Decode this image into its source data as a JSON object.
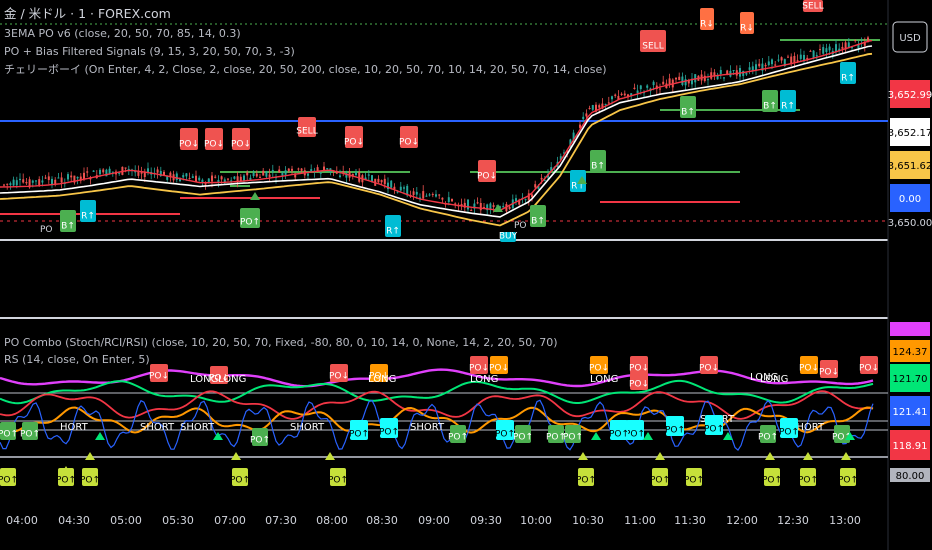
{
  "header": {
    "symbol": "金 / 米ドル · 1 · FOREX.com",
    "indicators": [
      "3EMA PO v6 (close, 20, 50, 70, 85, 14, 0.3)",
      "PO + Bias Filtered Signals (9, 15, 3, 20, 50, 70, 3, -3)",
      "チェリーボーイ (On Enter, 4, 2, Close, 2, close, 20, 50, 200, close, 10, 20, 50, 70, 10, 14, 20, 50, 70, 14, close)"
    ]
  },
  "lower_pane": {
    "indicators": [
      "PO Combo (Stoch/RCI/RSI) (close, 10, 20, 50, 70, Fixed, -80, 80, 0, 10, 14, 0, None, 14, 2, 20, 50, 70)",
      "RS (14, close, On Enter, 5)"
    ]
  },
  "price_axis": {
    "currency": "USD",
    "tags_top": [
      {
        "text": "3,652.99",
        "bg": "#f23645",
        "fg": "#ffffff"
      },
      {
        "text": "3,652.17",
        "bg": "#ffffff",
        "fg": "#000000"
      },
      {
        "text": "3,651.62",
        "bg": "#f7c548",
        "fg": "#000000"
      },
      {
        "text": "0.00",
        "bg": "#2962ff",
        "fg": "#ffffff"
      },
      {
        "text": "3,650.00",
        "bg": "#000000",
        "fg": "#d1d4dc"
      }
    ],
    "tags_bottom": [
      {
        "text": "",
        "bg": "#e040fb",
        "fg": "#ffffff"
      },
      {
        "text": "124.37",
        "bg": "#ff9800",
        "fg": "#000000"
      },
      {
        "text": "121.70",
        "bg": "#00e676",
        "fg": "#000000"
      },
      {
        "text": "121.41",
        "bg": "#2962ff",
        "fg": "#ffffff"
      },
      {
        "text": "118.91",
        "bg": "#f23645",
        "fg": "#ffffff"
      },
      {
        "text": "80.00",
        "bg": "#b2b5be",
        "fg": "#000000"
      }
    ]
  },
  "time_axis": [
    "04:00",
    "04:30",
    "05:00",
    "05:30",
    "07:00",
    "07:30",
    "08:00",
    "08:30",
    "09:00",
    "09:30",
    "10:00",
    "10:30",
    "11:00",
    "11:30",
    "12:00",
    "12:30",
    "13:00"
  ],
  "signal_labels": {
    "sell": "SELL",
    "r_down": "R↓",
    "r_up": "R↑",
    "b_up": "B↑",
    "po": "PO",
    "po_up": "PO↑",
    "po_down": "PO↓",
    "long": "LONG",
    "short": "SHORT",
    "buy": "BUY",
    "hort": "HORT"
  },
  "colors": {
    "background": "#000000",
    "ema_fast": "#f23645",
    "ema_mid": "#ffffff",
    "ema_slow": "#f7c548",
    "line_green": "#4caf50",
    "line_red": "#f23645",
    "line_blue": "#2962ff",
    "candle_up": "#26a69a",
    "candle_down": "#ef5350"
  }
}
